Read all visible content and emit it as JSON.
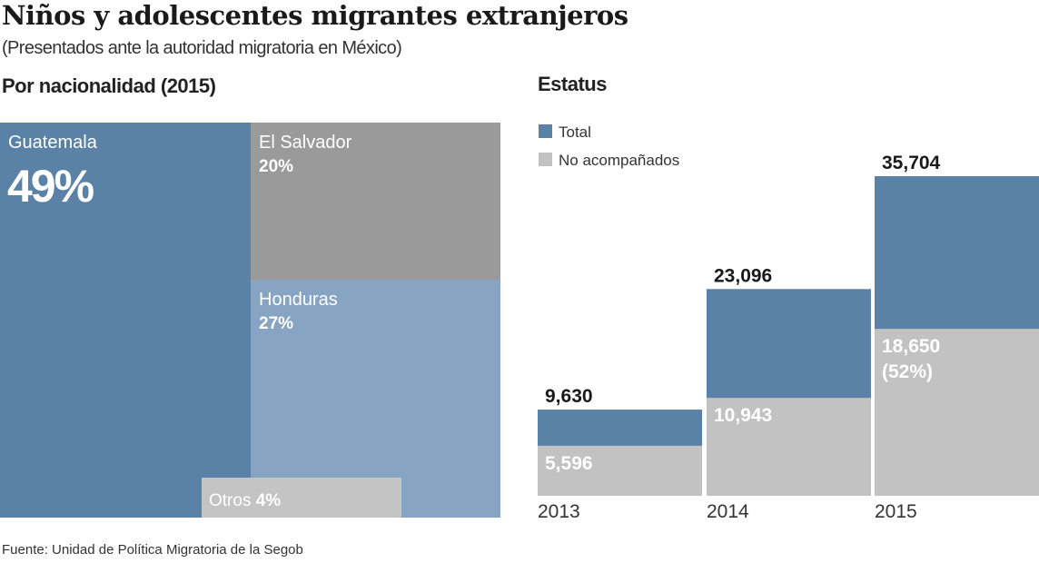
{
  "title": "Niños y adolescentes migrantes extranjeros",
  "subtitle": "(Presentados ante la autoridad migratoria en México)",
  "source": "Fuente: Unidad de Política Migratoria de la Segob",
  "colors": {
    "total": "#5a82a6",
    "no_acompanados": "#c2c2c2",
    "guatemala": "#5a82a6",
    "el_salvador": "#9a9a9a",
    "honduras": "#87a5c2",
    "otros": "#c4c4c4"
  },
  "chart_data": [
    {
      "type": "treemap",
      "title": "Por nacionalidad (2015)",
      "items": [
        {
          "name": "Guatemala",
          "value": 49,
          "label": "49%"
        },
        {
          "name": "El Salvador",
          "value": 20,
          "label": "20%"
        },
        {
          "name": "Honduras",
          "value": 27,
          "label": "27%"
        },
        {
          "name": "Otros",
          "value": 4,
          "label": "4%"
        }
      ]
    },
    {
      "type": "bar",
      "title": "Estatus",
      "categories": [
        "2013",
        "2014",
        "2015"
      ],
      "legend": [
        "Total",
        "No acompañados"
      ],
      "legend_position": "top-left",
      "series": [
        {
          "name": "Total",
          "values": [
            9630,
            23096,
            35704
          ],
          "labels": [
            "9,630",
            "23,096",
            "35,704"
          ]
        },
        {
          "name": "No acompañados",
          "values": [
            5596,
            10943,
            18650
          ],
          "labels": [
            "5,596",
            "10,943",
            "18,650"
          ],
          "notes": [
            "",
            "",
            "(52%)"
          ]
        }
      ],
      "grid": false
    }
  ]
}
